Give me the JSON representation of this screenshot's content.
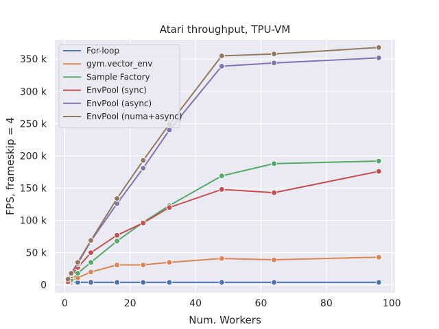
{
  "chart_data": {
    "type": "line",
    "title": "Atari throughput, TPU-VM",
    "xlabel": "Num. Workers",
    "ylabel": "FPS, frameskip = 4",
    "xlim": [
      -3,
      101
    ],
    "ylim": [
      -12000,
      380000
    ],
    "x_ticks": [
      0,
      20,
      40,
      60,
      80,
      100
    ],
    "x_tick_labels": [
      "0",
      "20",
      "40",
      "60",
      "80",
      "100"
    ],
    "y_ticks": [
      0,
      50000,
      100000,
      150000,
      200000,
      250000,
      300000,
      350000
    ],
    "y_tick_labels": [
      "0",
      "50 k",
      "100 k",
      "150 k",
      "200 k",
      "250 k",
      "300 k",
      "350 k"
    ],
    "grid": true,
    "legend_position": "top-left",
    "series": [
      {
        "name": "For-loop",
        "color": "#4c72b0",
        "x": [
          1,
          2,
          4,
          8,
          16,
          24,
          32,
          48,
          64,
          96
        ],
        "y": [
          4000,
          4000,
          4000,
          4000,
          4000,
          4000,
          4000,
          4000,
          4000,
          4000
        ]
      },
      {
        "name": "gym.vector_env",
        "color": "#dd8452",
        "x": [
          1,
          2,
          4,
          8,
          16,
          24,
          32,
          48,
          64,
          96
        ],
        "y": [
          3000,
          6000,
          11000,
          20000,
          31000,
          31000,
          35000,
          41000,
          39000,
          43000
        ]
      },
      {
        "name": "Sample Factory",
        "color": "#55a868",
        "x": [
          1,
          2,
          4,
          8,
          16,
          24,
          32,
          48,
          64,
          96
        ],
        "y": [
          4000,
          8000,
          18000,
          35000,
          68000,
          97000,
          123000,
          169000,
          188000,
          192000
        ]
      },
      {
        "name": "EnvPool (sync)",
        "color": "#c44e52",
        "x": [
          1,
          2,
          4,
          8,
          16,
          24,
          32,
          48,
          64,
          96
        ],
        "y": [
          5000,
          14000,
          27000,
          50000,
          77000,
          96000,
          120000,
          148000,
          143000,
          176000
        ]
      },
      {
        "name": "EnvPool (async)",
        "color": "#8172b3",
        "x": [
          1,
          2,
          4,
          8,
          16,
          24,
          32,
          48,
          64,
          96
        ],
        "y": [
          9000,
          17000,
          33000,
          68000,
          126000,
          181000,
          240000,
          339000,
          344000,
          352000
        ]
      },
      {
        "name": "EnvPool (numa+async)",
        "color": "#937860",
        "x": [
          1,
          2,
          4,
          8,
          16,
          24,
          32,
          48,
          64,
          96
        ],
        "y": [
          9000,
          18000,
          35000,
          69000,
          134000,
          193000,
          249000,
          355000,
          358000,
          368000
        ]
      }
    ]
  }
}
